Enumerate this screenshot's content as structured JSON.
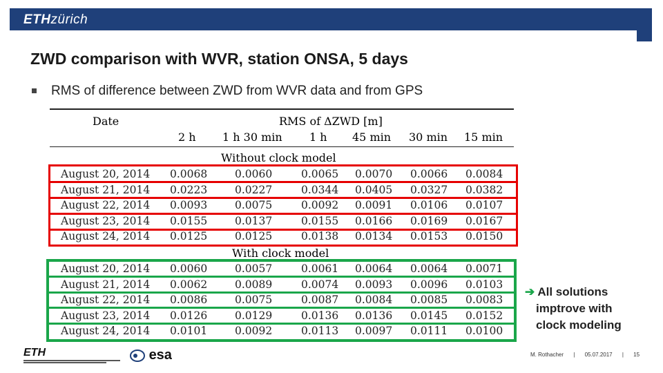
{
  "header": {
    "logo_bold": "ETH",
    "logo_italic": "zürich"
  },
  "title": "ZWD comparison with WVR, station ONSA, 5 days",
  "bullet": "RMS of difference between ZWD from WVR data and from GPS",
  "table": {
    "col_header_date": "Date",
    "col_header_group": "RMS of ΔZWD [m]",
    "columns": [
      "2 h",
      "1 h 30 min",
      "1 h",
      "45 min",
      "30 min",
      "15 min"
    ],
    "section_without": "Without clock model",
    "section_with": "With clock model",
    "without_rows": [
      {
        "date": "August 20, 2014",
        "v": [
          "0.0068",
          "0.0060",
          "0.0065",
          "0.0070",
          "0.0066",
          "0.0084"
        ]
      },
      {
        "date": "August 21, 2014",
        "v": [
          "0.0223",
          "0.0227",
          "0.0344",
          "0.0405",
          "0.0327",
          "0.0382"
        ]
      },
      {
        "date": "August 22, 2014",
        "v": [
          "0.0093",
          "0.0075",
          "0.0092",
          "0.0091",
          "0.0106",
          "0.0107"
        ]
      },
      {
        "date": "August 23, 2014",
        "v": [
          "0.0155",
          "0.0137",
          "0.0155",
          "0.0166",
          "0.0169",
          "0.0167"
        ]
      },
      {
        "date": "August 24, 2014",
        "v": [
          "0.0125",
          "0.0125",
          "0.0138",
          "0.0134",
          "0.0153",
          "0.0150"
        ]
      }
    ],
    "with_rows": [
      {
        "date": "August 20, 2014",
        "v": [
          "0.0060",
          "0.0057",
          "0.0061",
          "0.0064",
          "0.0064",
          "0.0071"
        ]
      },
      {
        "date": "August 21, 2014",
        "v": [
          "0.0062",
          "0.0089",
          "0.0074",
          "0.0093",
          "0.0096",
          "0.0103"
        ]
      },
      {
        "date": "August 22, 2014",
        "v": [
          "0.0086",
          "0.0075",
          "0.0087",
          "0.0084",
          "0.0085",
          "0.0083"
        ]
      },
      {
        "date": "August 23, 2014",
        "v": [
          "0.0126",
          "0.0129",
          "0.0136",
          "0.0136",
          "0.0145",
          "0.0152"
        ]
      },
      {
        "date": "August 24, 2014",
        "v": [
          "0.0101",
          "0.0092",
          "0.0113",
          "0.0097",
          "0.0111",
          "0.0100"
        ]
      }
    ]
  },
  "note": {
    "arrow": "➔",
    "line1": "All solutions",
    "line2": "imptrove with",
    "line3": "clock modeling"
  },
  "footer": {
    "author": "M. Rothacher",
    "date": "05.07.2017",
    "page": "15",
    "sep": "|",
    "esa": "esa",
    "eth_logo": "ETH"
  },
  "colors": {
    "header": "#1f407a",
    "red": "#e60000",
    "green": "#1aa64a"
  }
}
